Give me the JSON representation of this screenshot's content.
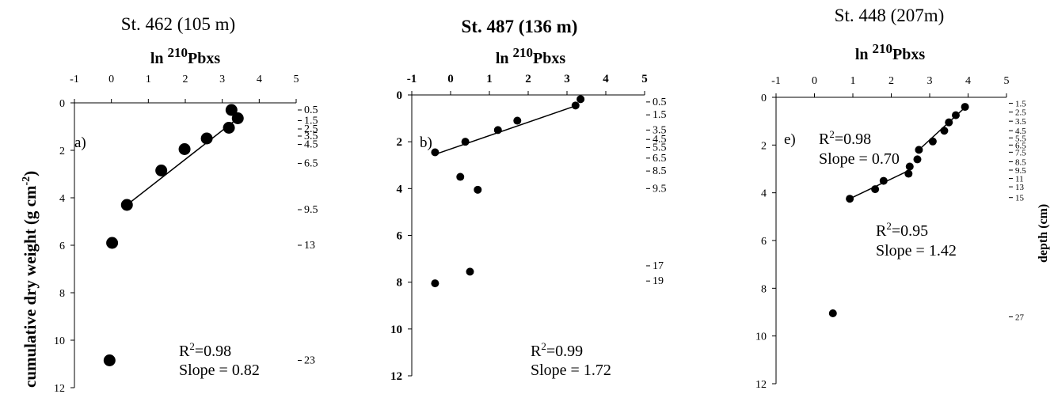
{
  "figure": {
    "left_axis_label": "cumulative dry weight (g cm",
    "left_axis_label_sup": "-2",
    "left_axis_label_end": ")",
    "right_axis_label": "depth (cm)"
  },
  "panels": [
    {
      "station_title": "St. 462 (105 m)",
      "title_bold": false,
      "letter": "a)",
      "fits": [
        {
          "r2_label": "R",
          "r2_value": "=0.98",
          "slope_text": "Slope = 0.82"
        }
      ]
    },
    {
      "station_title": "St. 487 (136 m)",
      "title_bold": true,
      "letter": "b)",
      "fits": [
        {
          "r2_label": "R",
          "r2_value": "=0.99",
          "slope_text": "Slope = 1.72"
        }
      ]
    },
    {
      "station_title": "St. 448 (207m)",
      "title_bold": false,
      "letter": "e)",
      "fits": [
        {
          "r2_label": "R",
          "r2_value": "=0.98",
          "slope_text": "Slope = 0.70"
        },
        {
          "r2_label": "R",
          "r2_value": "=0.95",
          "slope_text": "Slope = 1.42"
        }
      ]
    }
  ],
  "chart_data": [
    {
      "type": "scatter",
      "title": "St. 462 (105 m)",
      "xlabel": "ln 210Pbxs",
      "ylabel": "cumulative dry weight (g cm-2)",
      "xlim": [
        -1,
        5
      ],
      "ylim": [
        0,
        12
      ],
      "y_reversed": true,
      "x_ticks": [
        -1,
        0,
        1,
        2,
        3,
        4,
        5
      ],
      "y_ticks": [
        0,
        2,
        4,
        6,
        8,
        10,
        12
      ],
      "marker": "large-dot",
      "points": [
        [
          3.25,
          0.3
        ],
        [
          3.42,
          0.65
        ],
        [
          3.18,
          1.05
        ],
        [
          2.58,
          1.5
        ],
        [
          1.98,
          1.95
        ],
        [
          1.35,
          2.85
        ],
        [
          0.42,
          4.3
        ],
        [
          0.02,
          5.9
        ],
        [
          -0.05,
          10.85
        ]
      ],
      "fit_lines": [
        {
          "x1": 0.42,
          "y1": 4.3,
          "x2": 3.3,
          "y2": 0.8
        }
      ],
      "depth_labels": [
        {
          "y": 0.3,
          "text": "0.5"
        },
        {
          "y": 0.75,
          "text": "1.5"
        },
        {
          "y": 1.1,
          "text": "2.5"
        },
        {
          "y": 1.4,
          "text": "3.5"
        },
        {
          "y": 1.75,
          "text": "4.5"
        },
        {
          "y": 2.55,
          "text": "6.5"
        },
        {
          "y": 4.5,
          "text": "9.5"
        },
        {
          "y": 6.0,
          "text": "13"
        },
        {
          "y": 10.85,
          "text": "23"
        }
      ]
    },
    {
      "type": "scatter",
      "title": "St. 487 (136 m)",
      "xlabel": "ln 210Pbxs",
      "ylabel": "cumulative dry weight (g cm-2)",
      "xlim": [
        -1,
        5
      ],
      "ylim": [
        0,
        12
      ],
      "y_reversed": true,
      "x_ticks": [
        -1,
        0,
        1,
        2,
        3,
        4,
        5
      ],
      "y_ticks": [
        0,
        2,
        4,
        6,
        8,
        10,
        12
      ],
      "marker": "small-dot",
      "points": [
        [
          3.35,
          0.18
        ],
        [
          3.22,
          0.45
        ],
        [
          1.72,
          1.1
        ],
        [
          1.22,
          1.5
        ],
        [
          0.38,
          2.0
        ],
        [
          -0.4,
          2.45
        ],
        [
          0.25,
          3.5
        ],
        [
          0.7,
          4.05
        ],
        [
          0.5,
          7.55
        ],
        [
          -0.4,
          8.05
        ]
      ],
      "fit_lines": [
        {
          "x1": -0.42,
          "y1": 2.55,
          "x2": 3.25,
          "y2": 0.45
        }
      ],
      "depth_labels": [
        {
          "y": 0.3,
          "text": "0.5"
        },
        {
          "y": 0.85,
          "text": "1.5"
        },
        {
          "y": 1.5,
          "text": "3.5"
        },
        {
          "y": 1.9,
          "text": "4.5"
        },
        {
          "y": 2.25,
          "text": "5.5"
        },
        {
          "y": 2.7,
          "text": "6.5"
        },
        {
          "y": 3.25,
          "text": "8.5"
        },
        {
          "y": 4.0,
          "text": "9.5"
        },
        {
          "y": 7.3,
          "text": "17"
        },
        {
          "y": 7.95,
          "text": "19"
        }
      ]
    },
    {
      "type": "scatter",
      "title": "St. 448 (207m)",
      "xlabel": "ln 210Pbxs",
      "ylabel": "cumulative dry weight (g cm-2)",
      "xlim": [
        -1,
        5
      ],
      "ylim": [
        0,
        12
      ],
      "y_reversed": true,
      "x_ticks": [
        -1,
        0,
        1,
        2,
        3,
        4,
        5
      ],
      "y_ticks": [
        0,
        2,
        4,
        6,
        8,
        10,
        12
      ],
      "marker": "small-dot",
      "points": [
        [
          3.92,
          0.4
        ],
        [
          3.68,
          0.75
        ],
        [
          3.5,
          1.05
        ],
        [
          3.38,
          1.4
        ],
        [
          3.08,
          1.85
        ],
        [
          2.72,
          2.2
        ],
        [
          2.68,
          2.6
        ],
        [
          2.48,
          2.9
        ],
        [
          2.45,
          3.2
        ],
        [
          1.8,
          3.5
        ],
        [
          1.58,
          3.85
        ],
        [
          0.92,
          4.25
        ],
        [
          0.48,
          9.05
        ]
      ],
      "fit_lines": [
        {
          "x1": 2.72,
          "y1": 2.2,
          "x2": 3.95,
          "y2": 0.38
        },
        {
          "x1": 0.92,
          "y1": 4.25,
          "x2": 2.48,
          "y2": 3.05
        }
      ],
      "depth_labels": [
        {
          "y": 0.25,
          "text": "1.5"
        },
        {
          "y": 0.62,
          "text": "2.5"
        },
        {
          "y": 1.0,
          "text": "3.5"
        },
        {
          "y": 1.4,
          "text": "4.5"
        },
        {
          "y": 1.7,
          "text": "5.5"
        },
        {
          "y": 2.0,
          "text": "6.5"
        },
        {
          "y": 2.3,
          "text": "7.5"
        },
        {
          "y": 2.7,
          "text": "8.5"
        },
        {
          "y": 3.05,
          "text": "9.5"
        },
        {
          "y": 3.4,
          "text": "11"
        },
        {
          "y": 3.75,
          "text": "13"
        },
        {
          "y": 4.2,
          "text": "15"
        },
        {
          "y": 9.2,
          "text": "27"
        }
      ]
    }
  ]
}
